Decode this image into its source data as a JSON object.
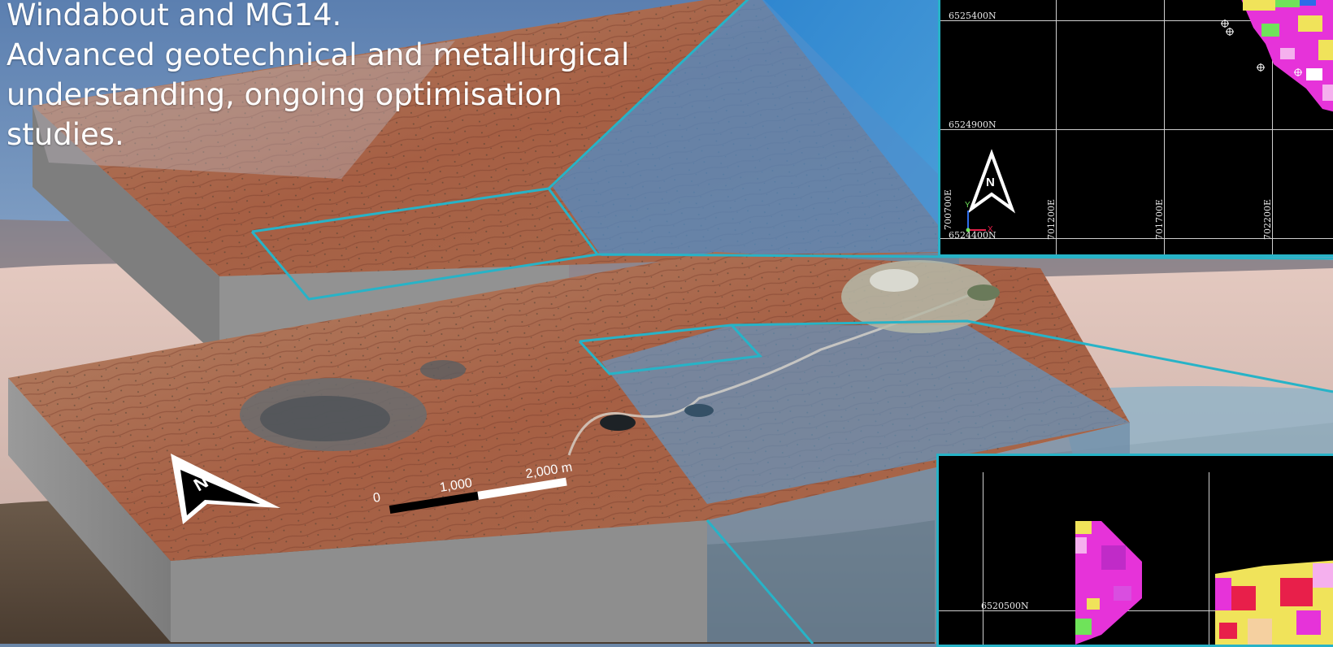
{
  "caption": {
    "lines": [
      "Windabout and MG14.",
      "Advanced geotechnical and metallurgical",
      "understanding, ongoing optimisation",
      "studies."
    ]
  },
  "map": {
    "north_letter": "N",
    "scale": {
      "tick_0": "0",
      "tick_1": "1,000",
      "tick_2": "2,000 m"
    }
  },
  "inset_top": {
    "north_letter": "N",
    "northings": [
      "6525400N",
      "6524900N",
      "6524400N"
    ],
    "eastings": [
      "701200E",
      "701700E",
      "702200E"
    ],
    "partial_easting": "700700E",
    "axis_y": "Y",
    "axis_x": "X"
  },
  "inset_bottom": {
    "northing": "6520500N"
  },
  "colors": {
    "outline": "#27b3c7",
    "terrain": "#a8674a",
    "block_side": "#8e8e8e",
    "magenta": "#e633d9",
    "yellow": "#f0e35a",
    "green": "#6fe35a",
    "red": "#e81f4a"
  }
}
